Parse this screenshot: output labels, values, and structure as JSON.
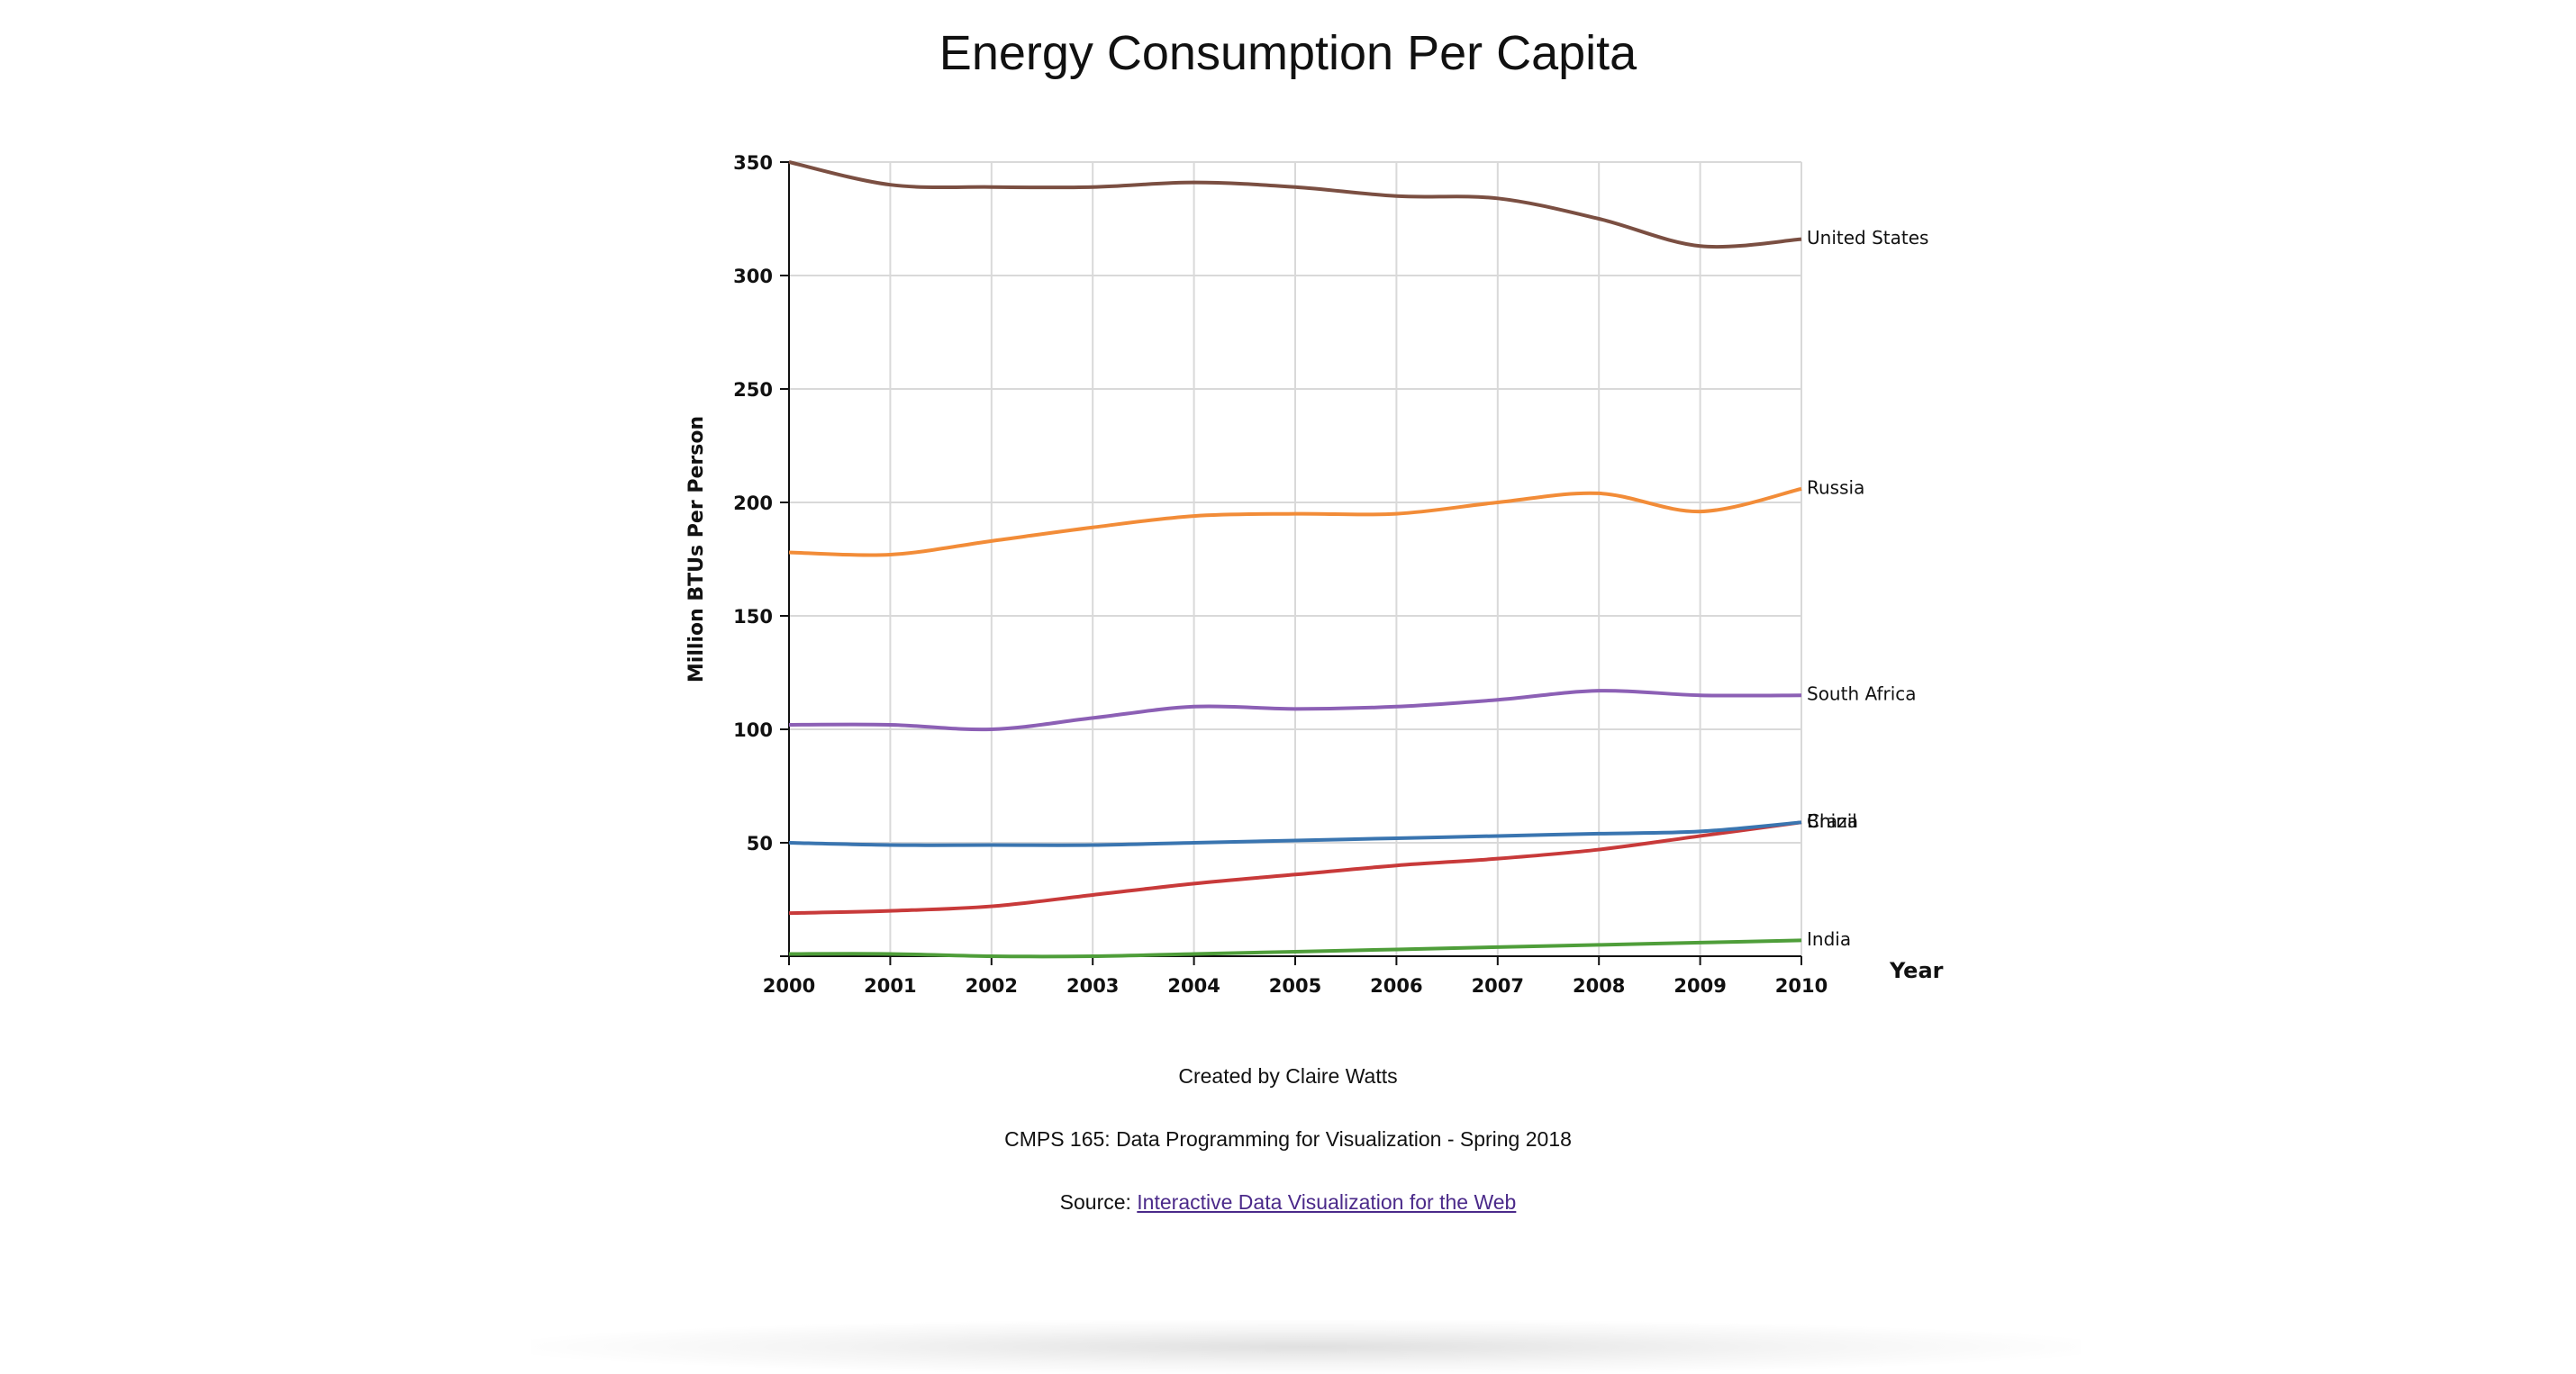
{
  "chart_data": {
    "type": "line",
    "title": "Energy Consumption Per Capita",
    "xlabel": "Year",
    "ylabel": "Million BTUs Per Person",
    "x": [
      2000,
      2001,
      2002,
      2003,
      2004,
      2005,
      2006,
      2007,
      2008,
      2009,
      2010
    ],
    "xlim": [
      2000,
      2010
    ],
    "ylim": [
      0,
      350
    ],
    "yticks": [
      50,
      100,
      150,
      200,
      250,
      300,
      350
    ],
    "xticks": [
      2000,
      2001,
      2002,
      2003,
      2004,
      2005,
      2006,
      2007,
      2008,
      2009,
      2010
    ],
    "grid": true,
    "legend": "inline-right",
    "series": [
      {
        "name": "United States",
        "color": "#7b4f42",
        "values": [
          350,
          340,
          339,
          339,
          341,
          339,
          335,
          334,
          325,
          313,
          316
        ]
      },
      {
        "name": "Russia",
        "color": "#f28c38",
        "values": [
          178,
          177,
          183,
          189,
          194,
          195,
          195,
          200,
          204,
          196,
          206
        ]
      },
      {
        "name": "South Africa",
        "color": "#8c60b5",
        "values": [
          102,
          102,
          100,
          105,
          110,
          109,
          110,
          113,
          117,
          115,
          115
        ]
      },
      {
        "name": "China",
        "color": "#c83a3a",
        "values": [
          19,
          20,
          22,
          27,
          32,
          36,
          40,
          43,
          47,
          53,
          59
        ]
      },
      {
        "name": "Brazil",
        "color": "#3a75b0",
        "values": [
          50,
          49,
          49,
          49,
          50,
          51,
          52,
          53,
          54,
          55,
          59
        ]
      },
      {
        "name": "India",
        "color": "#4f9e3a",
        "values": [
          1,
          1,
          0,
          0,
          1,
          2,
          3,
          4,
          5,
          6,
          7
        ]
      }
    ]
  },
  "footer": {
    "credit": "Created by Claire Watts",
    "course": "CMPS 165: Data Programming for Visualization - Spring 2018",
    "source_label": "Source: ",
    "source_link": "Interactive Data Visualization for the Web"
  }
}
